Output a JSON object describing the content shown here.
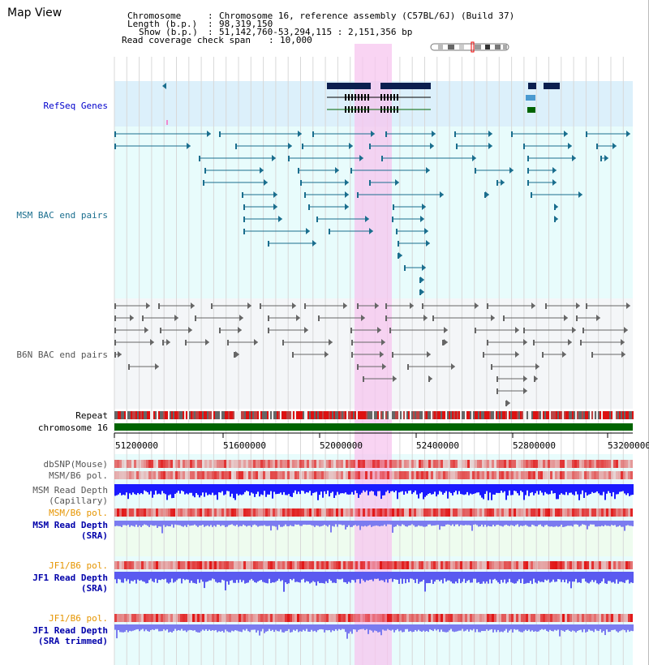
{
  "app": {
    "title": "Map View"
  },
  "info": {
    "chromosome_label": "Chromosome",
    "chromosome_value": "Chromosome 16, reference assembly (C57BL/6J) (Build 37)",
    "length_label": "Length (b.p.)",
    "length_value": "98,319,150",
    "show_label": "Show (b.p.)",
    "show_value": "51,142,760-53,294,115 : 2,151,356 bp",
    "span_label": "Read coverage check span",
    "span_value": "10,000"
  },
  "tracks": {
    "refseq": "RefSeq Genes",
    "msm_bac": "MSM BAC end pairs",
    "b6n_bac": "B6N BAC end pairs",
    "repeat": "Repeat",
    "chromosome": "chromosome 16",
    "dbsnp": "dbSNP(Mouse)",
    "msm_b6_pol": "MSM/B6 pol.",
    "msm_read_depth": "MSM Read Depth",
    "capillary": "(Capillary)",
    "msm_b6_pol2": "MSM/B6 pol.",
    "msm_read_depth_sra": "MSM Read Depth",
    "sra": "(SRA)",
    "jf1_b6_pol": "JF1/B6 pol.",
    "jf1_read_depth": "JF1 Read Depth",
    "sra2": "(SRA)",
    "jf1_b6_pol2": "JF1/B6 pol.",
    "jf1_read_depth2": "JF1 Read Depth",
    "sra_trimmed": "(SRA trimmed)"
  },
  "axis": {
    "ticks": [
      "51200000",
      "51600000",
      "52000000",
      "52400000",
      "52800000",
      "53200000"
    ]
  },
  "colors": {
    "refseq_label": "#0000cc",
    "msm_label": "#1a6e8e",
    "b6n_label": "#555555",
    "orange_label": "#e69500",
    "blue_label": "#0000aa",
    "highlight": "#f7c6ef",
    "chromosome_bar": "#006400",
    "depth_blue": "#1a1aff",
    "depth_light": "#7b7bf0"
  }
}
